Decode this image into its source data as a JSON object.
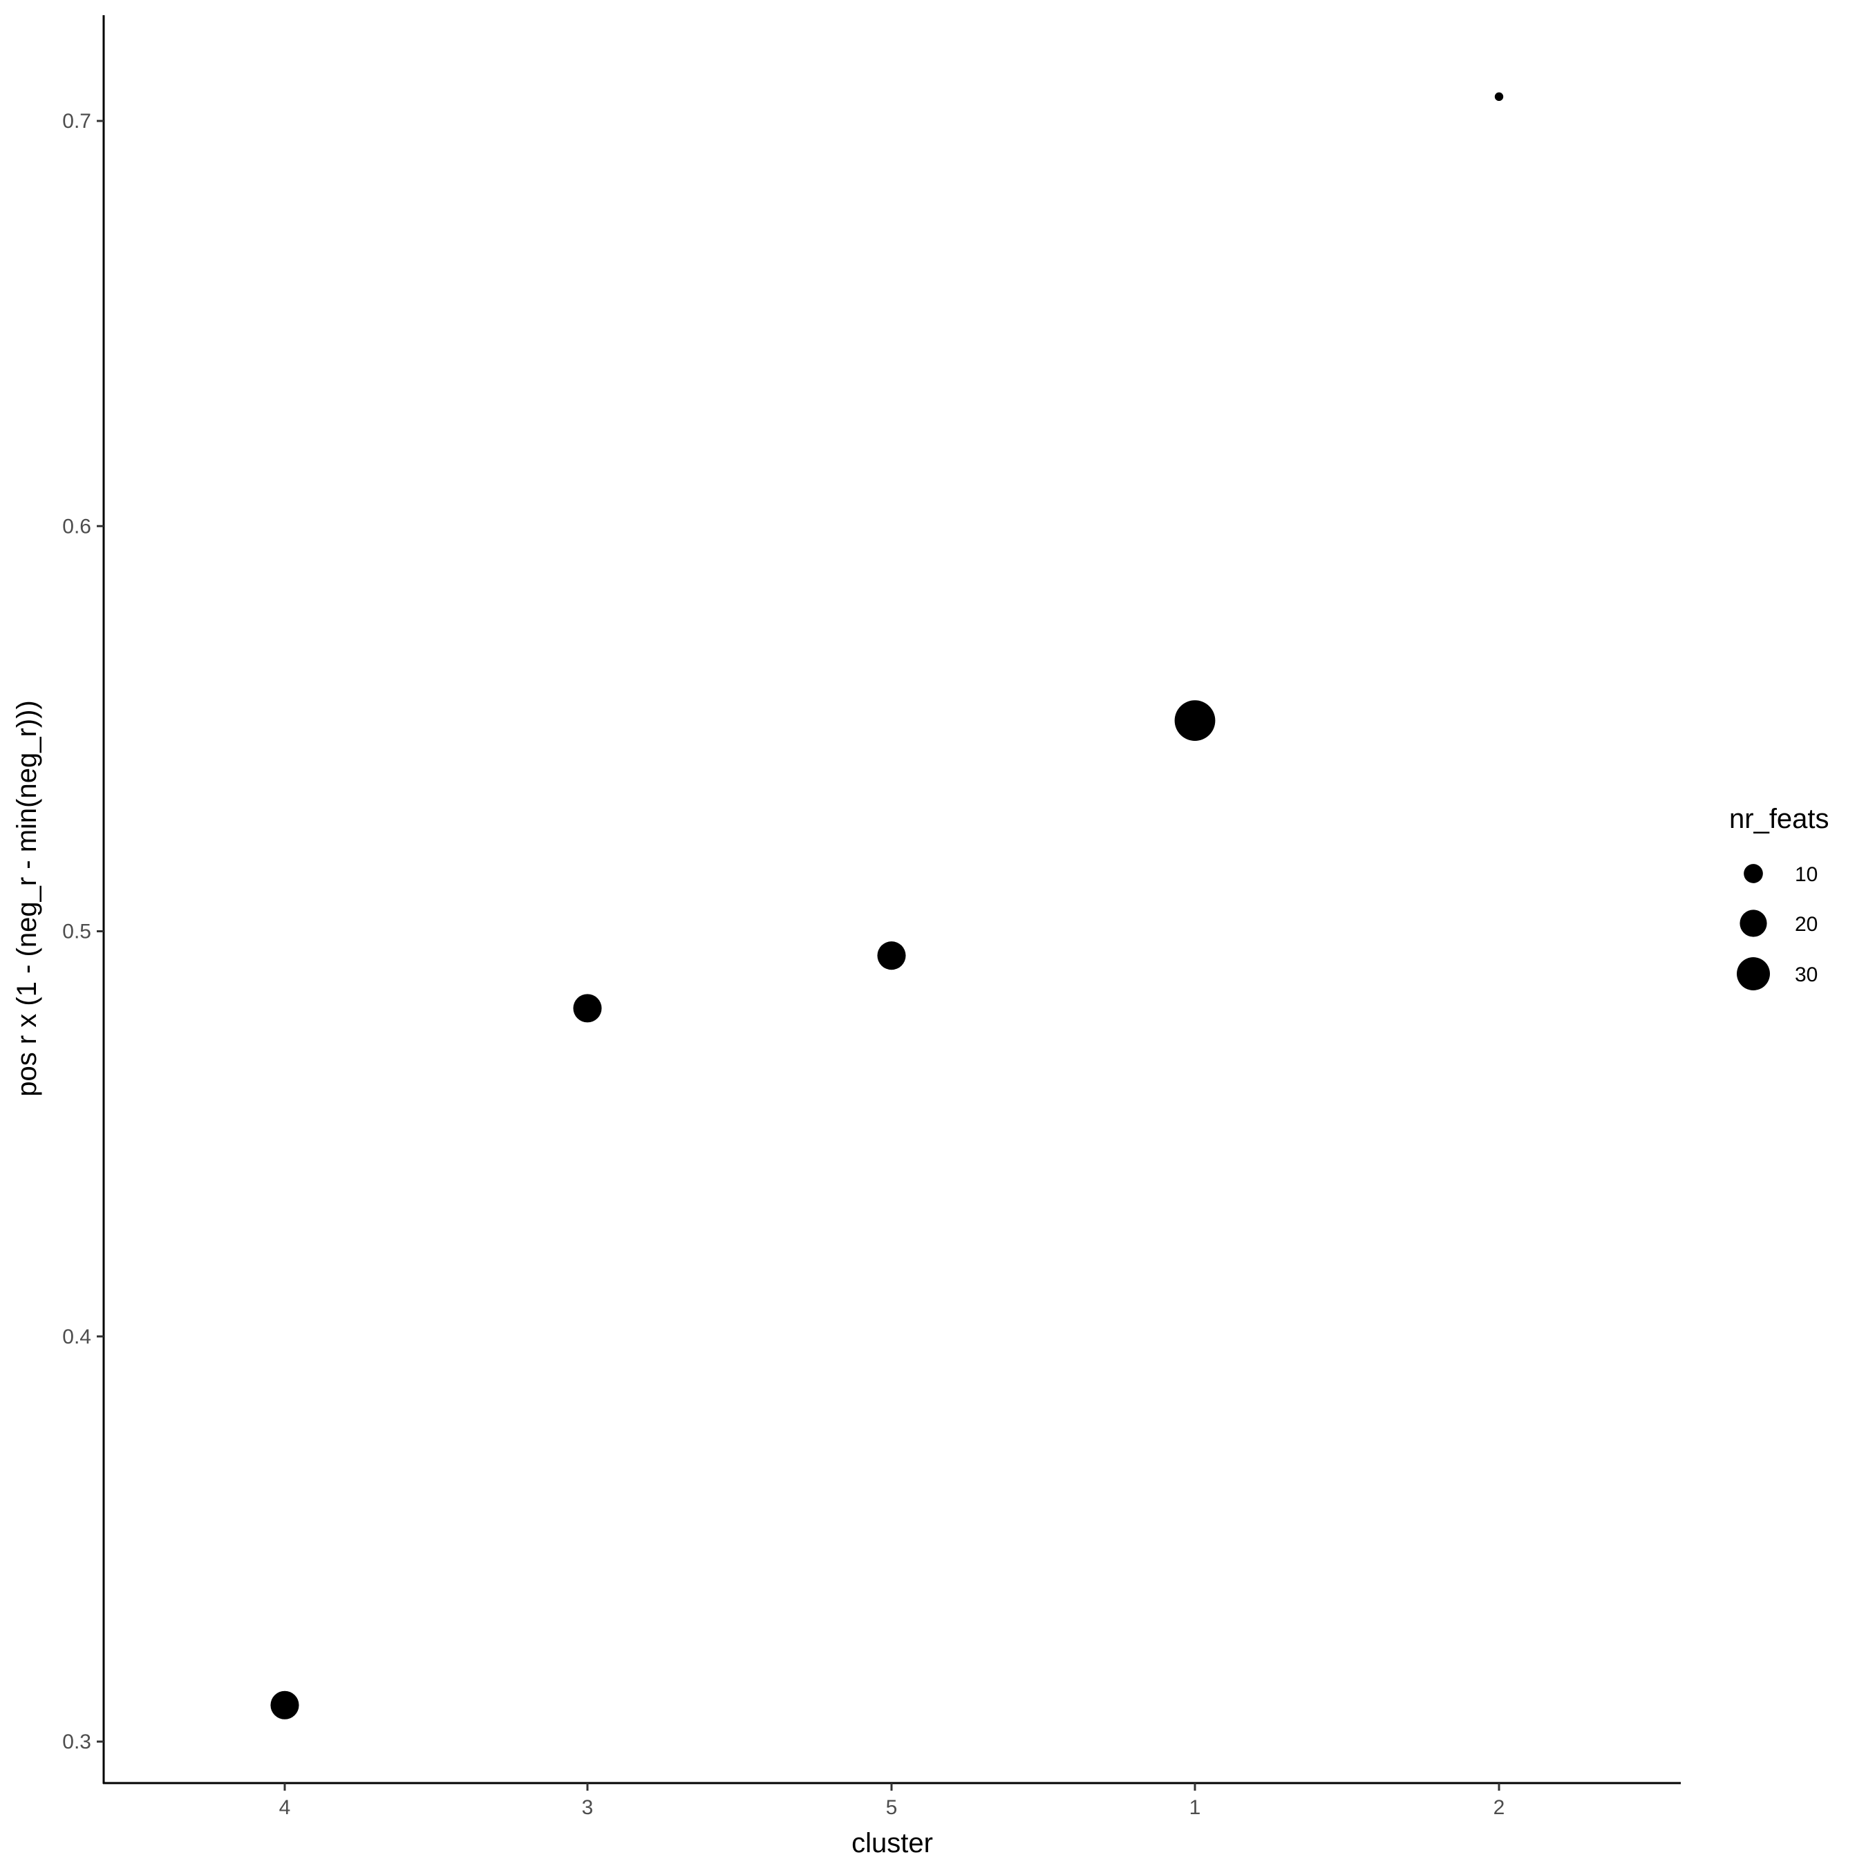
{
  "chart_data": {
    "type": "scatter",
    "xlabel": "cluster",
    "ylabel": "pos r x (1 - (neg_r - min(neg_r)))",
    "categories": [
      "4",
      "3",
      "5",
      "1",
      "2"
    ],
    "points": [
      {
        "cluster": "4",
        "y": 0.309,
        "nr_feats": 22
      },
      {
        "cluster": "3",
        "y": 0.481,
        "nr_feats": 22
      },
      {
        "cluster": "5",
        "y": 0.494,
        "nr_feats": 22
      },
      {
        "cluster": "1",
        "y": 0.552,
        "nr_feats": 45
      },
      {
        "cluster": "2",
        "y": 0.706,
        "nr_feats": 2
      }
    ],
    "yticks": [
      "0.3",
      "0.4",
      "0.5",
      "0.6",
      "0.7"
    ],
    "ylim": [
      0.29,
      0.724
    ],
    "grid": false,
    "legend": {
      "title": "nr_feats",
      "position": "right",
      "entries": [
        10,
        20,
        30
      ],
      "labels": [
        "10",
        "20",
        "30"
      ]
    },
    "point_color": "#000000"
  }
}
